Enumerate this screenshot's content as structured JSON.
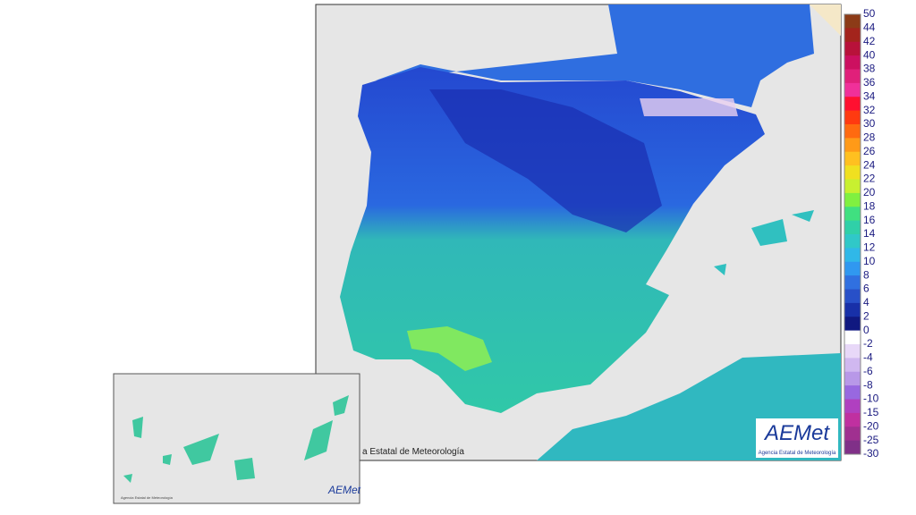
{
  "legend": {
    "labels": [
      50,
      44,
      42,
      40,
      38,
      36,
      34,
      32,
      30,
      28,
      26,
      24,
      22,
      20,
      18,
      16,
      14,
      12,
      10,
      8,
      6,
      4,
      2,
      0,
      -2,
      -4,
      -6,
      -8,
      -10,
      -15,
      -20,
      -25,
      -30
    ],
    "colors": [
      "#8c3b17",
      "#a3241c",
      "#b8123a",
      "#cc1060",
      "#e0207a",
      "#f0309a",
      "#ff1030",
      "#ff3a10",
      "#ff6a10",
      "#ff9a18",
      "#ffc020",
      "#f0e020",
      "#c8f030",
      "#80f040",
      "#40e080",
      "#30d0a8",
      "#30c8c8",
      "#30b8e8",
      "#3098f0",
      "#3070e0",
      "#2850c8",
      "#1830a8",
      "#101880",
      "#ffffff",
      "#e8d8f8",
      "#d0b8f0",
      "#b898e8",
      "#9868e0",
      "#b040c0",
      "#c030a0",
      "#a03090",
      "#803088"
    ]
  },
  "logo": {
    "text": "AEMet",
    "subtitle": "Agencia Estatal de Meteorología"
  },
  "map_caption": "a Estatal de Meteorología",
  "inset": {
    "logo": "AEMet",
    "caption": "Agencia Estatal de Meteorología"
  }
}
